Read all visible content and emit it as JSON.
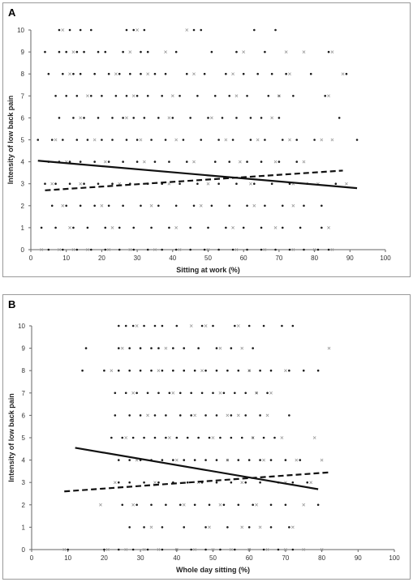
{
  "chart_data": [
    {
      "type": "scatter",
      "panel_label": "A",
      "xlabel": "Sitting at work (%)",
      "ylabel": "Intensity of low back pain",
      "xlim": [
        0,
        100
      ],
      "ylim": [
        0,
        10
      ],
      "x_ticks": [
        "0",
        "10",
        "20",
        "30",
        "40",
        "50",
        "60",
        "70",
        "80",
        "90",
        "100"
      ],
      "y_ticks": [
        "0",
        "1",
        "2",
        "3",
        "4",
        "5",
        "6",
        "7",
        "8",
        "9",
        "10"
      ],
      "grid": false,
      "legend": "none",
      "series": [
        {
          "marker": "dot",
          "color": "#1a1a1a",
          "points_by_level": {
            "10": [
              8,
              11,
              14,
              17,
              27,
              29,
              32,
              46,
              48,
              63,
              69
            ],
            "9": [
              4,
              8,
              10,
              13,
              15,
              19,
              21,
              26,
              31,
              33,
              41,
              51,
              58,
              66,
              84
            ],
            "8": [
              5,
              9,
              12,
              14,
              18,
              22,
              25,
              28,
              31,
              35,
              38,
              44,
              49,
              55,
              60,
              64,
              68,
              72,
              79,
              89
            ],
            "7": [
              7,
              10,
              13,
              17,
              20,
              24,
              27,
              30,
              33,
              37,
              42,
              47,
              52,
              56,
              61,
              67,
              70,
              74,
              83
            ],
            "6": [
              8,
              12,
              15,
              19,
              23,
              26,
              29,
              32,
              36,
              40,
              45,
              50,
              54,
              58,
              62,
              65,
              70,
              87
            ],
            "5": [
              2,
              6,
              9,
              13,
              16,
              20,
              23,
              27,
              30,
              34,
              38,
              43,
              48,
              53,
              57,
              62,
              66,
              71,
              75,
              80,
              92
            ],
            "4": [
              5,
              8,
              11,
              14,
              18,
              22,
              26,
              30,
              35,
              39,
              44,
              52,
              56,
              61,
              65,
              70,
              75
            ],
            "3": [
              4,
              7,
              11,
              15,
              19,
              23,
              28,
              33,
              37,
              42,
              47,
              53,
              58,
              63,
              68,
              73,
              78,
              86
            ],
            "2": [
              6,
              10,
              14,
              18,
              22,
              26,
              31,
              36,
              41,
              46,
              51,
              56,
              61,
              66,
              71,
              77,
              82
            ],
            "1": [
              3,
              7,
              12,
              16,
              21,
              25,
              29,
              34,
              39,
              45,
              50,
              55,
              60,
              65,
              71,
              76,
              82
            ],
            "0": [
              5,
              9,
              13,
              17,
              21,
              25,
              29,
              33,
              37,
              41,
              45,
              49,
              53,
              57,
              61,
              65,
              69,
              73,
              77,
              81,
              84
            ]
          }
        },
        {
          "marker": "x",
          "color": "#9a9a9a",
          "points_by_level": {
            "10": [
              9,
              30,
              44
            ],
            "9": [
              12,
              28,
              38,
              60,
              72,
              77,
              85
            ],
            "8": [
              11,
              24,
              33,
              46,
              57,
              73,
              88
            ],
            "7": [
              16,
              29,
              40,
              58,
              70,
              84
            ],
            "6": [
              14,
              27,
              39,
              51,
              68
            ],
            "5": [
              7,
              18,
              31,
              41,
              55,
              64,
              73,
              82,
              85
            ],
            "4": [
              10,
              21,
              32,
              46,
              59,
              69,
              77
            ],
            "3": [
              6,
              14,
              25,
              39,
              50,
              62,
              74,
              81,
              89
            ],
            "2": [
              9,
              20,
              34,
              48,
              63,
              74
            ],
            "1": [
              11,
              23,
              41,
              57,
              69,
              84
            ],
            "0": [
              3,
              8,
              12,
              16,
              22,
              28,
              35,
              42,
              50,
              58,
              66,
              74,
              80,
              85
            ]
          }
        }
      ],
      "trendlines": [
        {
          "style": "solid",
          "x": [
            2,
            92
          ],
          "y": [
            4.05,
            2.8
          ]
        },
        {
          "style": "dashed",
          "x": [
            4,
            88
          ],
          "y": [
            2.7,
            3.6
          ]
        }
      ]
    },
    {
      "type": "scatter",
      "panel_label": "B",
      "xlabel": "Whole day sitting  (%)",
      "ylabel": "Intensity of low back pain",
      "xlim": [
        0,
        100
      ],
      "ylim": [
        0,
        10
      ],
      "x_ticks": [
        "0",
        "10",
        "20",
        "30",
        "40",
        "50",
        "60",
        "70",
        "80",
        "90",
        "100"
      ],
      "y_ticks": [
        "0",
        "1",
        "2",
        "3",
        "4",
        "5",
        "6",
        "7",
        "8",
        "9",
        "10"
      ],
      "grid": false,
      "legend": "none",
      "series": [
        {
          "marker": "dot",
          "color": "#1a1a1a",
          "points_by_level": {
            "10": [
              24,
              26,
              28,
              31,
              34,
              36,
              40,
              47,
              50,
              56,
              60,
              64,
              69,
              72
            ],
            "9": [
              15,
              24,
              27,
              30,
              33,
              35,
              39,
              42,
              46,
              51,
              55,
              61
            ],
            "8": [
              14,
              20,
              24,
              27,
              30,
              33,
              36,
              39,
              42,
              45,
              48,
              51,
              54,
              57,
              60,
              63,
              66,
              71,
              75,
              79
            ],
            "7": [
              23,
              26,
              29,
              32,
              35,
              38,
              41,
              44,
              47,
              50,
              53,
              56,
              59,
              62,
              65
            ],
            "6": [
              23,
              27,
              30,
              34,
              37,
              41,
              44,
              48,
              51,
              55,
              59,
              63,
              71
            ],
            "5": [
              22,
              25,
              28,
              31,
              34,
              37,
              40,
              43,
              46,
              49,
              52,
              55,
              58,
              61,
              64,
              67
            ],
            "4": [
              24,
              27,
              30,
              33,
              36,
              39,
              42,
              45,
              48,
              51,
              54,
              57,
              60,
              63,
              66,
              70,
              74
            ],
            "3": [
              24,
              27,
              31,
              35,
              39,
              43,
              47,
              51,
              55,
              59,
              63,
              68,
              72,
              76
            ],
            "2": [
              25,
              29,
              33,
              37,
              41,
              45,
              49,
              53,
              57,
              61,
              66,
              70,
              79
            ],
            "1": [
              27,
              31,
              36,
              42,
              48,
              54,
              60,
              66,
              71
            ],
            "0": [
              10,
              20,
              24,
              28,
              32,
              36,
              40,
              44,
              48,
              52,
              56,
              60,
              64,
              68,
              72
            ]
          }
        },
        {
          "marker": "x",
          "color": "#9a9a9a",
          "points_by_level": {
            "10": [
              29,
              44,
              48,
              57
            ],
            "9": [
              25,
              37,
              52,
              58,
              82
            ],
            "8": [
              22,
              35,
              47,
              60,
              70
            ],
            "7": [
              28,
              39,
              52,
              62,
              66
            ],
            "6": [
              32,
              45,
              54,
              57,
              65
            ],
            "5": [
              26,
              38,
              50,
              61,
              69,
              78
            ],
            "4": [
              29,
              40,
              54,
              64,
              73,
              80
            ],
            "3": [
              23,
              34,
              46,
              58,
              70,
              77
            ],
            "2": [
              19,
              28,
              42,
              52,
              62,
              75
            ],
            "1": [
              33,
              49,
              58,
              63,
              72
            ],
            "0": [
              9,
              21,
              26,
              31,
              35,
              40,
              45,
              50,
              55,
              60,
              65,
              70,
              75,
              80
            ]
          }
        }
      ],
      "trendlines": [
        {
          "style": "solid",
          "x": [
            12,
            79
          ],
          "y": [
            4.55,
            2.7
          ]
        },
        {
          "style": "dashed",
          "x": [
            9,
            82
          ],
          "y": [
            2.6,
            3.45
          ]
        }
      ]
    }
  ]
}
